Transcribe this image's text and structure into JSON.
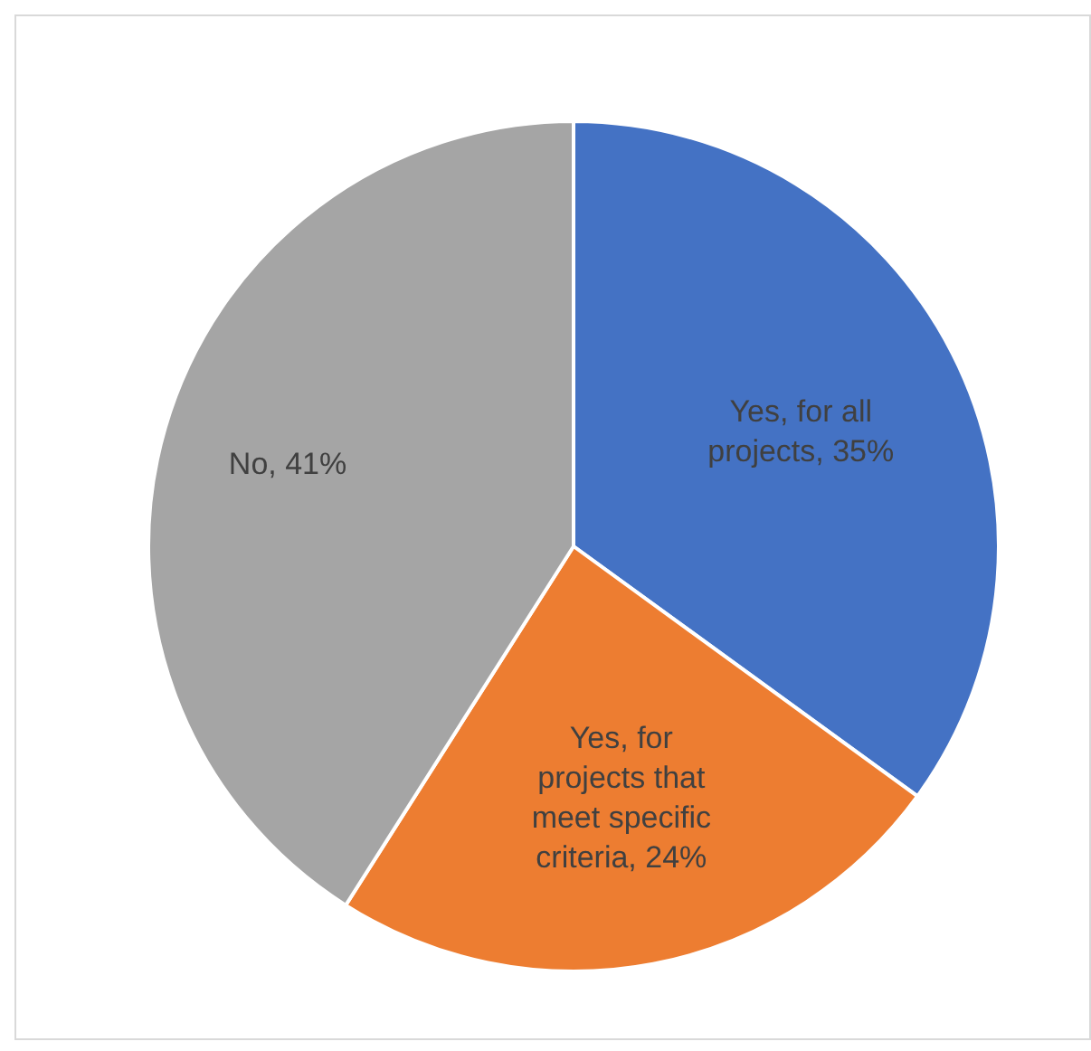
{
  "chart_data": {
    "type": "pie",
    "categories": [
      "Yes, for all projects",
      "Yes, for projects that meet specific criteria",
      "No"
    ],
    "values": [
      35,
      24,
      41
    ],
    "value_labels": [
      "35%",
      "24%",
      "41%"
    ],
    "colors": [
      "#4472c4",
      "#ed7d31",
      "#a5a5a5"
    ]
  }
}
